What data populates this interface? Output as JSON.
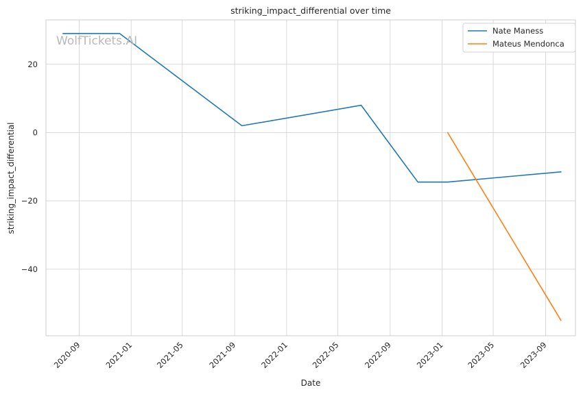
{
  "watermark": "WolfTickets.AI",
  "chart_data": {
    "type": "line",
    "title": "striking_impact_differential over time",
    "xlabel": "Date",
    "ylabel": "striking_impact_differential",
    "x_axis_type": "date",
    "xlim": [
      "2020-06-15",
      "2023-11-10"
    ],
    "ylim": [
      -59.5,
      33
    ],
    "x_ticks": [
      "2020-09-01",
      "2021-01-01",
      "2021-05-01",
      "2021-09-01",
      "2022-01-01",
      "2022-05-01",
      "2022-09-01",
      "2023-01-01",
      "2023-05-01",
      "2023-09-01"
    ],
    "x_tick_labels": [
      "2020-09",
      "2021-01",
      "2021-05",
      "2021-09",
      "2022-01",
      "2022-05",
      "2022-09",
      "2023-01",
      "2023-05",
      "2023-09"
    ],
    "y_ticks": [
      20,
      0,
      -20,
      -40
    ],
    "y_tick_labels": [
      "20",
      "0",
      "−20",
      "−40"
    ],
    "grid": true,
    "legend_position": "top-right",
    "series": [
      {
        "name": "Nate Maness",
        "color": "#1f77b4",
        "x": [
          "2020-07-25",
          "2020-12-05",
          "2021-09-18",
          "2022-06-25",
          "2022-11-05",
          "2023-01-14",
          "2023-10-07"
        ],
        "y": [
          29,
          29,
          2,
          8,
          -14.5,
          -14.5,
          -11.5
        ]
      },
      {
        "name": "Mateus Mendonca",
        "color": "#ff7f0e",
        "x": [
          "2023-01-14",
          "2023-10-07"
        ],
        "y": [
          0,
          -55
        ]
      }
    ]
  }
}
